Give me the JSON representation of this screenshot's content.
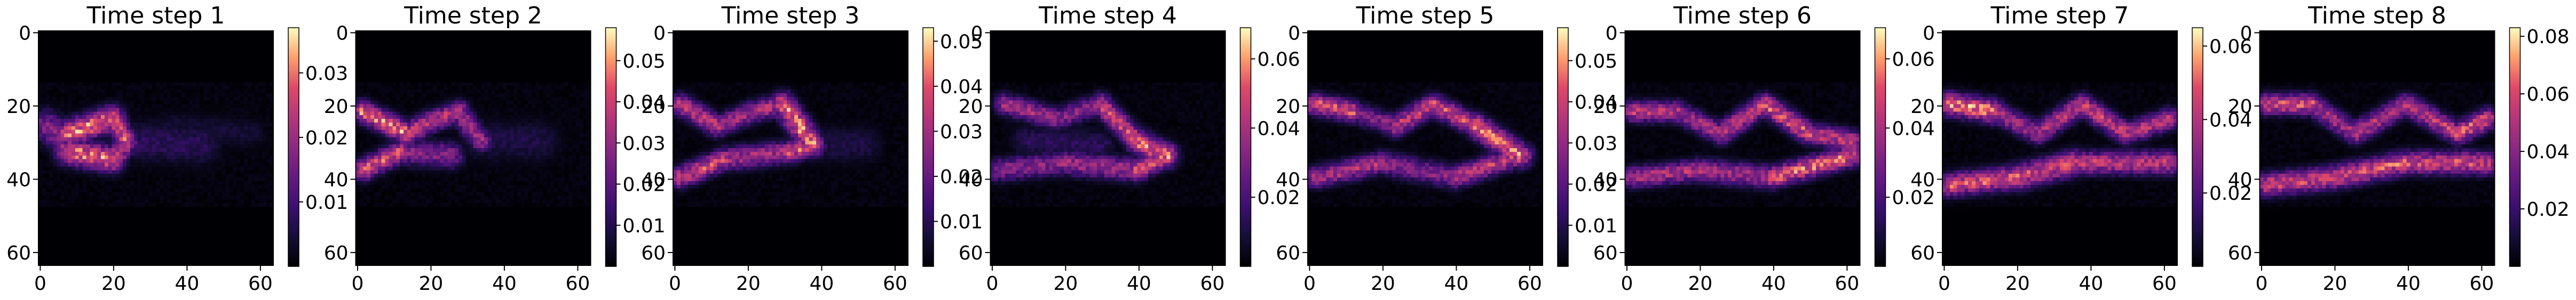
{
  "chart_data": [
    {
      "type": "heatmap",
      "title": "Time step 1",
      "xlabel": "",
      "ylabel": "",
      "xlim": [
        0,
        64
      ],
      "ylim": [
        64,
        0
      ],
      "x_ticks": [
        "0",
        "20",
        "40",
        "60"
      ],
      "y_ticks": [
        "0",
        "20",
        "40",
        "60"
      ],
      "colormap": "magma",
      "colorbar": {
        "min": 0,
        "max": 0.037,
        "ticks": [
          0.01,
          0.02,
          0.03
        ],
        "tick_labels": [
          "0.01",
          "0.02",
          "0.03"
        ]
      },
      "features": [
        {
          "start": [
            8,
            28
          ],
          "end": [
            20,
            24
          ],
          "weight": 1.0,
          "width": 2.4
        },
        {
          "start": [
            8,
            33
          ],
          "end": [
            20,
            35
          ],
          "weight": 1.0,
          "width": 2.4
        },
        {
          "start": [
            20,
            24
          ],
          "end": [
            24,
            30
          ],
          "weight": 0.9,
          "width": 2.0
        },
        {
          "start": [
            24,
            30
          ],
          "end": [
            20,
            36
          ],
          "weight": 0.85,
          "width": 2.0
        },
        {
          "start": [
            2,
            26
          ],
          "end": [
            8,
            30
          ],
          "weight": 0.6,
          "width": 3.0
        },
        {
          "start": [
            24,
            30
          ],
          "end": [
            44,
            31
          ],
          "weight": 0.25,
          "width": 4.0
        },
        {
          "start": [
            36,
            26
          ],
          "end": [
            58,
            28
          ],
          "weight": 0.15,
          "width": 3.0
        }
      ]
    },
    {
      "type": "heatmap",
      "title": "Time step 2",
      "xlabel": "",
      "ylabel": "",
      "xlim": [
        0,
        64
      ],
      "ylim": [
        64,
        0
      ],
      "x_ticks": [
        "0",
        "20",
        "40",
        "60"
      ],
      "y_ticks": [
        "0",
        "20",
        "40",
        "60"
      ],
      "colormap": "magma",
      "colorbar": {
        "min": 0,
        "max": 0.058,
        "ticks": [
          0.01,
          0.02,
          0.03,
          0.04,
          0.05
        ],
        "tick_labels": [
          "0.01",
          "0.02",
          "0.03",
          "0.04",
          "0.05"
        ]
      },
      "features": [
        {
          "start": [
            2,
            22
          ],
          "end": [
            14,
            28
          ],
          "weight": 1.0,
          "width": 2.0
        },
        {
          "start": [
            2,
            38
          ],
          "end": [
            12,
            33
          ],
          "weight": 0.9,
          "width": 2.0
        },
        {
          "start": [
            14,
            28
          ],
          "end": [
            20,
            25
          ],
          "weight": 0.85,
          "width": 2.0
        },
        {
          "start": [
            20,
            25
          ],
          "end": [
            28,
            22
          ],
          "weight": 0.8,
          "width": 2.0
        },
        {
          "start": [
            28,
            22
          ],
          "end": [
            34,
            30
          ],
          "weight": 0.7,
          "width": 2.0
        },
        {
          "start": [
            12,
            33
          ],
          "end": [
            26,
            34
          ],
          "weight": 0.6,
          "width": 2.4
        },
        {
          "start": [
            34,
            30
          ],
          "end": [
            50,
            30
          ],
          "weight": 0.2,
          "width": 4.0
        }
      ]
    },
    {
      "type": "heatmap",
      "title": "Time step 3",
      "xlabel": "",
      "ylabel": "",
      "xlim": [
        0,
        64
      ],
      "ylim": [
        64,
        0
      ],
      "x_ticks": [
        "0",
        "20",
        "40",
        "60"
      ],
      "y_ticks": [
        "0",
        "20",
        "40",
        "60"
      ],
      "colormap": "magma",
      "colorbar": {
        "min": 0,
        "max": 0.053,
        "ticks": [
          0.01,
          0.02,
          0.03,
          0.04,
          0.05
        ],
        "tick_labels": [
          "0.01",
          "0.02",
          "0.03",
          "0.04",
          "0.05"
        ]
      },
      "features": [
        {
          "start": [
            2,
            20
          ],
          "end": [
            12,
            26
          ],
          "weight": 0.8,
          "width": 2.0
        },
        {
          "start": [
            12,
            26
          ],
          "end": [
            22,
            22
          ],
          "weight": 0.7,
          "width": 2.0
        },
        {
          "start": [
            22,
            22
          ],
          "end": [
            30,
            20
          ],
          "weight": 0.75,
          "width": 2.0
        },
        {
          "start": [
            30,
            20
          ],
          "end": [
            38,
            31
          ],
          "weight": 1.0,
          "width": 2.2
        },
        {
          "start": [
            2,
            40
          ],
          "end": [
            14,
            35
          ],
          "weight": 0.85,
          "width": 2.0
        },
        {
          "start": [
            14,
            35
          ],
          "end": [
            32,
            33
          ],
          "weight": 0.7,
          "width": 2.2
        },
        {
          "start": [
            32,
            33
          ],
          "end": [
            38,
            31
          ],
          "weight": 0.9,
          "width": 2.0
        },
        {
          "start": [
            38,
            31
          ],
          "end": [
            52,
            31
          ],
          "weight": 0.2,
          "width": 3.5
        }
      ]
    },
    {
      "type": "heatmap",
      "title": "Time step 4",
      "xlabel": "",
      "ylabel": "",
      "xlim": [
        0,
        64
      ],
      "ylim": [
        64,
        0
      ],
      "x_ticks": [
        "0",
        "20",
        "40",
        "60"
      ],
      "y_ticks": [
        "0",
        "20",
        "40",
        "60"
      ],
      "colormap": "magma",
      "colorbar": {
        "min": 0,
        "max": 0.069,
        "ticks": [
          0.02,
          0.04,
          0.06
        ],
        "tick_labels": [
          "0.02",
          "0.04",
          "0.06"
        ]
      },
      "features": [
        {
          "start": [
            4,
            20
          ],
          "end": [
            18,
            24
          ],
          "weight": 0.7,
          "width": 2.0
        },
        {
          "start": [
            18,
            24
          ],
          "end": [
            30,
            20
          ],
          "weight": 0.6,
          "width": 2.0
        },
        {
          "start": [
            30,
            20
          ],
          "end": [
            40,
            30
          ],
          "weight": 0.85,
          "width": 2.0
        },
        {
          "start": [
            40,
            30
          ],
          "end": [
            48,
            34
          ],
          "weight": 1.0,
          "width": 2.2
        },
        {
          "start": [
            2,
            38
          ],
          "end": [
            20,
            36
          ],
          "weight": 0.6,
          "width": 2.2
        },
        {
          "start": [
            20,
            36
          ],
          "end": [
            40,
            38
          ],
          "weight": 0.7,
          "width": 2.2
        },
        {
          "start": [
            40,
            38
          ],
          "end": [
            48,
            34
          ],
          "weight": 0.9,
          "width": 2.0
        },
        {
          "start": [
            10,
            30
          ],
          "end": [
            30,
            31
          ],
          "weight": 0.25,
          "width": 3.0
        }
      ]
    },
    {
      "type": "heatmap",
      "title": "Time step 5",
      "xlabel": "",
      "ylabel": "",
      "xlim": [
        0,
        64
      ],
      "ylim": [
        64,
        0
      ],
      "x_ticks": [
        "0",
        "20",
        "40",
        "60"
      ],
      "y_ticks": [
        "0",
        "20",
        "40",
        "60"
      ],
      "colormap": "magma",
      "colorbar": {
        "min": 0,
        "max": 0.058,
        "ticks": [
          0.01,
          0.02,
          0.03,
          0.04,
          0.05
        ],
        "tick_labels": [
          "0.01",
          "0.02",
          "0.03",
          "0.04",
          "0.05"
        ]
      },
      "features": [
        {
          "start": [
            2,
            20
          ],
          "end": [
            12,
            22
          ],
          "weight": 0.9,
          "width": 2.0
        },
        {
          "start": [
            12,
            22
          ],
          "end": [
            24,
            26
          ],
          "weight": 0.6,
          "width": 2.0
        },
        {
          "start": [
            24,
            26
          ],
          "end": [
            34,
            20
          ],
          "weight": 0.8,
          "width": 2.0
        },
        {
          "start": [
            34,
            20
          ],
          "end": [
            46,
            26
          ],
          "weight": 0.85,
          "width": 2.0
        },
        {
          "start": [
            46,
            26
          ],
          "end": [
            58,
            34
          ],
          "weight": 1.0,
          "width": 2.2
        },
        {
          "start": [
            2,
            40
          ],
          "end": [
            20,
            36
          ],
          "weight": 0.75,
          "width": 2.0
        },
        {
          "start": [
            20,
            36
          ],
          "end": [
            40,
            40
          ],
          "weight": 0.6,
          "width": 2.2
        },
        {
          "start": [
            40,
            40
          ],
          "end": [
            58,
            34
          ],
          "weight": 0.8,
          "width": 2.0
        }
      ]
    },
    {
      "type": "heatmap",
      "title": "Time step 6",
      "xlabel": "",
      "ylabel": "",
      "xlim": [
        0,
        64
      ],
      "ylim": [
        64,
        0
      ],
      "x_ticks": [
        "0",
        "20",
        "40",
        "60"
      ],
      "y_ticks": [
        "0",
        "20",
        "40",
        "60"
      ],
      "colormap": "magma",
      "colorbar": {
        "min": 0,
        "max": 0.069,
        "ticks": [
          0.02,
          0.04,
          0.06
        ],
        "tick_labels": [
          "0.02",
          "0.04",
          "0.06"
        ]
      },
      "features": [
        {
          "start": [
            2,
            22
          ],
          "end": [
            14,
            22
          ],
          "weight": 0.8,
          "width": 2.0
        },
        {
          "start": [
            14,
            22
          ],
          "end": [
            26,
            28
          ],
          "weight": 0.7,
          "width": 2.0
        },
        {
          "start": [
            26,
            28
          ],
          "end": [
            38,
            20
          ],
          "weight": 0.8,
          "width": 2.0
        },
        {
          "start": [
            38,
            20
          ],
          "end": [
            50,
            28
          ],
          "weight": 0.9,
          "width": 2.0
        },
        {
          "start": [
            50,
            28
          ],
          "end": [
            62,
            30
          ],
          "weight": 0.8,
          "width": 2.0
        },
        {
          "start": [
            2,
            40
          ],
          "end": [
            20,
            38
          ],
          "weight": 0.75,
          "width": 2.0
        },
        {
          "start": [
            20,
            38
          ],
          "end": [
            40,
            40
          ],
          "weight": 0.7,
          "width": 2.2
        },
        {
          "start": [
            40,
            40
          ],
          "end": [
            62,
            34
          ],
          "weight": 0.95,
          "width": 2.0
        }
      ]
    },
    {
      "type": "heatmap",
      "title": "Time step 7",
      "xlabel": "",
      "ylabel": "",
      "xlim": [
        0,
        64
      ],
      "ylim": [
        64,
        0
      ],
      "x_ticks": [
        "0",
        "20",
        "40",
        "60"
      ],
      "y_ticks": [
        "0",
        "20",
        "40",
        "60"
      ],
      "colormap": "magma",
      "colorbar": {
        "min": 0,
        "max": 0.065,
        "ticks": [
          0.02,
          0.04,
          0.06
        ],
        "tick_labels": [
          "0.02",
          "0.04",
          "0.06"
        ]
      },
      "features": [
        {
          "start": [
            2,
            20
          ],
          "end": [
            14,
            22
          ],
          "weight": 1.0,
          "width": 2.2
        },
        {
          "start": [
            14,
            22
          ],
          "end": [
            26,
            28
          ],
          "weight": 0.7,
          "width": 2.0
        },
        {
          "start": [
            26,
            28
          ],
          "end": [
            38,
            20
          ],
          "weight": 0.75,
          "width": 2.0
        },
        {
          "start": [
            38,
            20
          ],
          "end": [
            50,
            28
          ],
          "weight": 0.8,
          "width": 2.0
        },
        {
          "start": [
            50,
            28
          ],
          "end": [
            62,
            24
          ],
          "weight": 0.8,
          "width": 2.0
        },
        {
          "start": [
            2,
            42
          ],
          "end": [
            20,
            40
          ],
          "weight": 0.9,
          "width": 2.2
        },
        {
          "start": [
            20,
            40
          ],
          "end": [
            36,
            36
          ],
          "weight": 0.85,
          "width": 2.4
        },
        {
          "start": [
            36,
            36
          ],
          "end": [
            62,
            36
          ],
          "weight": 0.8,
          "width": 2.2
        }
      ]
    },
    {
      "type": "heatmap",
      "title": "Time step 8",
      "xlabel": "",
      "ylabel": "",
      "xlim": [
        0,
        64
      ],
      "ylim": [
        64,
        0
      ],
      "x_ticks": [
        "0",
        "20",
        "40",
        "60"
      ],
      "y_ticks": [
        "0",
        "20",
        "40",
        "60"
      ],
      "colormap": "magma",
      "colorbar": {
        "min": 0,
        "max": 0.083,
        "ticks": [
          0.02,
          0.04,
          0.06,
          0.08
        ],
        "tick_labels": [
          "0.02",
          "0.04",
          "0.06",
          "0.08"
        ]
      },
      "features": [
        {
          "start": [
            2,
            20
          ],
          "end": [
            14,
            20
          ],
          "weight": 0.9,
          "width": 2.0
        },
        {
          "start": [
            14,
            20
          ],
          "end": [
            26,
            28
          ],
          "weight": 0.7,
          "width": 2.0
        },
        {
          "start": [
            26,
            28
          ],
          "end": [
            40,
            20
          ],
          "weight": 0.75,
          "width": 2.0
        },
        {
          "start": [
            40,
            20
          ],
          "end": [
            54,
            28
          ],
          "weight": 0.8,
          "width": 2.0
        },
        {
          "start": [
            54,
            28
          ],
          "end": [
            62,
            24
          ],
          "weight": 0.9,
          "width": 2.0
        },
        {
          "start": [
            2,
            42
          ],
          "end": [
            20,
            40
          ],
          "weight": 0.85,
          "width": 2.2
        },
        {
          "start": [
            20,
            40
          ],
          "end": [
            40,
            36
          ],
          "weight": 0.9,
          "width": 2.2
        },
        {
          "start": [
            40,
            36
          ],
          "end": [
            62,
            36
          ],
          "weight": 0.85,
          "width": 2.2
        }
      ]
    }
  ]
}
